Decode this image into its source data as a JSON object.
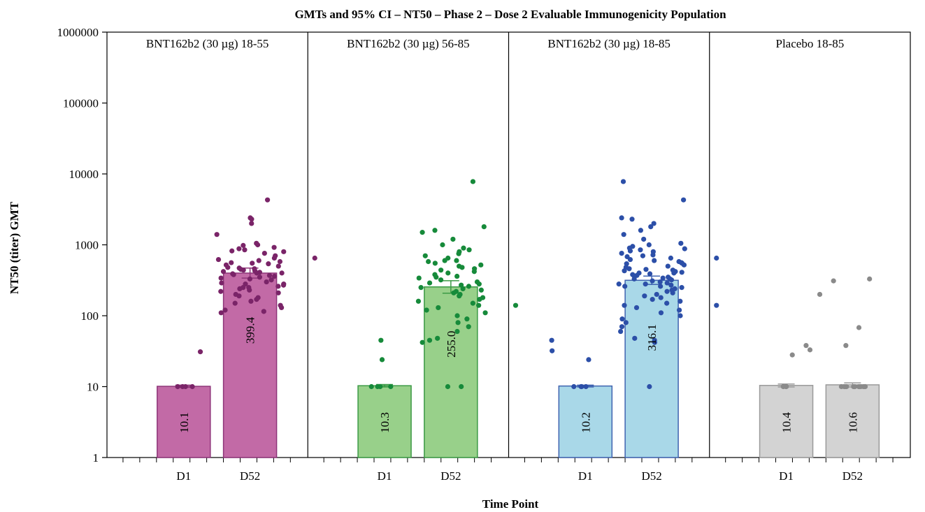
{
  "chart_data": {
    "type": "bar",
    "title": "GMTs and 95% CI – NT50 – Phase 2 – Dose 2 Evaluable Immunogenicity Population",
    "xlabel": "Time Point",
    "ylabel": "NT50 (titer) GMT",
    "yscale": "log",
    "ylim": [
      1,
      1000000
    ],
    "yticks": [
      {
        "value": 1,
        "label": "1"
      },
      {
        "value": 10,
        "label": "10"
      },
      {
        "value": 100,
        "label": "100"
      },
      {
        "value": 1000,
        "label": "1000"
      },
      {
        "value": 10000,
        "label": "10000"
      },
      {
        "value": 100000,
        "label": "100000"
      },
      {
        "value": 1000000,
        "label": "1000000"
      }
    ],
    "categories": [
      "D1",
      "D52"
    ],
    "panels": [
      {
        "name": "BNT162b2 (30 µg)  18-55",
        "fill": "#c26aa6",
        "stroke": "#8e3579",
        "dot": "#7a2468",
        "bars": [
          {
            "category": "D1",
            "gmt": 10.1,
            "label": "10.1",
            "ci": [
              9.8,
              10.5
            ]
          },
          {
            "category": "D52",
            "gmt": 399.4,
            "label": "399.4",
            "ci": [
              339,
              471
            ]
          }
        ],
        "points": {
          "D1": [
            31,
            10,
            10,
            10,
            10
          ],
          "D52": [
            4300,
            2400,
            2300,
            2000,
            1400,
            1050,
            1000,
            980,
            920,
            880,
            850,
            820,
            800,
            760,
            700,
            650,
            620,
            600,
            580,
            560,
            540,
            520,
            500,
            480,
            470,
            460,
            450,
            440,
            430,
            420,
            410,
            400,
            390,
            380,
            370,
            360,
            350,
            340,
            330,
            320,
            300,
            290,
            280,
            270,
            260,
            250,
            240,
            230,
            220,
            210,
            200,
            190,
            180,
            170,
            160,
            150,
            140,
            130,
            120,
            115,
            110,
            280,
            550,
            250,
            400
          ],
          "outliers": [
            650
          ]
        }
      },
      {
        "name": "BNT162b2 (30 µg)  56-85",
        "fill": "#98d08a",
        "stroke": "#3b9a45",
        "dot": "#168a3a",
        "bars": [
          {
            "category": "D1",
            "gmt": 10.3,
            "label": "10.3",
            "ci": [
              9.9,
              10.7
            ]
          },
          {
            "category": "D52",
            "gmt": 255.0,
            "label": "255.0",
            "ci": [
              208,
              312
            ]
          }
        ],
        "points": {
          "D1": [
            45,
            24,
            10,
            10,
            10,
            10
          ],
          "D52": [
            7800,
            1800,
            1600,
            1500,
            1200,
            1000,
            900,
            850,
            800,
            750,
            700,
            650,
            600,
            580,
            550,
            520,
            500,
            480,
            460,
            440,
            420,
            400,
            380,
            360,
            340,
            320,
            300,
            290,
            280,
            270,
            260,
            250,
            240,
            230,
            220,
            210,
            200,
            190,
            180,
            170,
            160,
            150,
            140,
            130,
            120,
            110,
            100,
            90,
            80,
            70,
            60,
            48,
            45,
            42,
            10,
            10,
            600,
            350
          ],
          "outliers": [
            140
          ]
        }
      },
      {
        "name": "BNT162b2 (30 µg)  18-85",
        "fill": "#a9d8e8",
        "stroke": "#3f63b0",
        "dot": "#2c4fa8",
        "bars": [
          {
            "category": "D1",
            "gmt": 10.2,
            "label": "10.2",
            "ci": [
              9.9,
              10.5
            ]
          },
          {
            "category": "D52",
            "gmt": 316.1,
            "label": "316.1",
            "ci": [
              276,
              362
            ]
          }
        ],
        "points": {
          "D1": [
            45,
            32,
            24,
            10,
            10,
            10,
            10
          ],
          "D52": [
            7800,
            4300,
            2400,
            2300,
            2000,
            1800,
            1600,
            1400,
            1200,
            1050,
            1000,
            950,
            900,
            880,
            850,
            820,
            800,
            760,
            720,
            700,
            680,
            650,
            620,
            600,
            580,
            560,
            540,
            520,
            500,
            480,
            460,
            450,
            440,
            430,
            420,
            410,
            400,
            390,
            380,
            370,
            360,
            350,
            340,
            330,
            320,
            310,
            300,
            290,
            280,
            270,
            260,
            250,
            240,
            230,
            220,
            210,
            200,
            190,
            180,
            170,
            160,
            150,
            140,
            130,
            120,
            110,
            100,
            90,
            80,
            70,
            60,
            48,
            45,
            42,
            10,
            280,
            550,
            260,
            400,
            330
          ],
          "outliers": [
            650,
            140
          ]
        }
      },
      {
        "name": "Placebo  18-85",
        "fill": "#d3d3d3",
        "stroke": "#9a9a9a",
        "dot": "#8a8a8a",
        "bars": [
          {
            "category": "D1",
            "gmt": 10.4,
            "label": "10.4",
            "ci": [
              9.9,
              10.9
            ]
          },
          {
            "category": "D52",
            "gmt": 10.6,
            "label": "10.6",
            "ci": [
              9.9,
              11.3
            ]
          }
        ],
        "points": {
          "D1": [
            200,
            38,
            33,
            28,
            10,
            10,
            10
          ],
          "D52": [
            330,
            310,
            68,
            38,
            10,
            10,
            10,
            10,
            10,
            10,
            10,
            10,
            10,
            10,
            10,
            10,
            10,
            10
          ],
          "outliers": []
        }
      }
    ]
  }
}
